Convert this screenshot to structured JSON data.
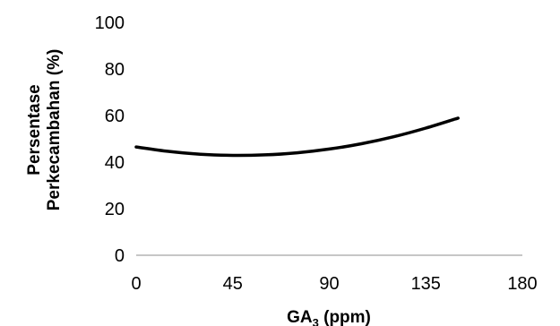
{
  "chart_data": {
    "type": "line",
    "title": "",
    "xlabel": "GA",
    "xlabel_subscript": "3",
    "xlabel_suffix": " (ppm)",
    "ylabel_lines": [
      "Persentase",
      "Perkecambahan (%)"
    ],
    "xlim": [
      0,
      180
    ],
    "ylim": [
      0,
      100
    ],
    "x_ticks": [
      "0",
      "45",
      "90",
      "135",
      "180"
    ],
    "y_ticks": [
      "0",
      "20",
      "40",
      "60",
      "80",
      "100"
    ],
    "grid": false,
    "legend": "none",
    "series": [
      {
        "color": "#000000",
        "x": [
          0,
          15,
          30,
          45,
          60,
          75,
          90,
          105,
          120,
          135,
          150
        ],
        "y": [
          46.5,
          44.6,
          43.4,
          42.9,
          43.1,
          44.0,
          45.6,
          47.9,
          50.9,
          54.6,
          58.9
        ]
      }
    ]
  }
}
